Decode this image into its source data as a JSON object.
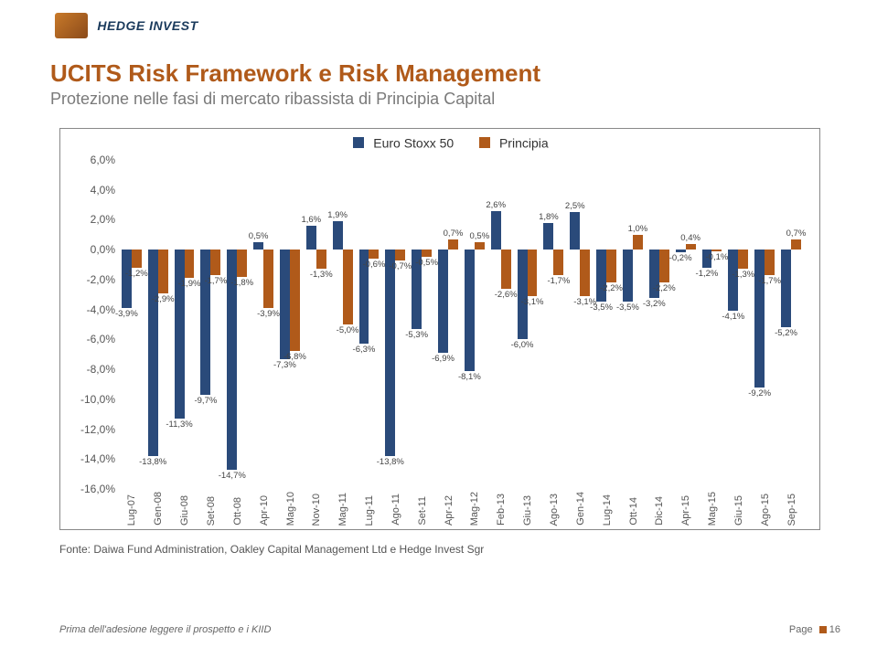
{
  "logo_text": "HEDGE INVEST",
  "title": "UCITS Risk Framework e Risk Management",
  "subtitle": "Protezione nelle fasi di mercato ribassista di Principia Capital",
  "source": "Fonte: Daiwa Fund Administration, Oakley Capital Management Ltd e Hedge Invest Sgr",
  "footer_left": "Prima dell'adesione leggere il prospetto e i KIID",
  "footer_right": "Page",
  "page_num": "16",
  "chart": {
    "type": "bar",
    "series": [
      {
        "name": "Euro Stoxx 50",
        "color": "#2a4a7a"
      },
      {
        "name": "Principia",
        "color": "#b05a1a"
      }
    ],
    "ylim": [
      -16,
      6
    ],
    "ytick_step": 2,
    "y_format_suffix": ",0%",
    "background_color": "#ffffff",
    "label_fontsize": 10,
    "categories": [
      "Lug-07",
      "Gen-08",
      "Giu-08",
      "Set-08",
      "Ott-08",
      "Apr-10",
      "Mag-10",
      "Nov-10",
      "Mag-11",
      "Lug-11",
      "Ago-11",
      "Set-11",
      "Apr-12",
      "Mag-12",
      "Feb-13",
      "Giu-13",
      "Ago-13",
      "Gen-14",
      "Lug-14",
      "Ott-14",
      "Dic-14",
      "Apr-15",
      "Mag-15",
      "Giu-15",
      "Ago-15",
      "Sep-15"
    ],
    "values_a": [
      -3.9,
      -13.8,
      -11.3,
      -9.7,
      -14.7,
      0.5,
      -7.3,
      1.6,
      1.9,
      -6.3,
      -13.8,
      -5.3,
      -6.9,
      -8.1,
      2.6,
      -6.0,
      1.8,
      2.5,
      -3.5,
      -3.5,
      -3.2,
      -0.2,
      -1.2,
      -4.1,
      -9.2,
      -5.2
    ],
    "values_b": [
      -1.2,
      -2.9,
      -1.9,
      -1.7,
      -1.8,
      -3.9,
      -6.8,
      -1.3,
      -5.0,
      -0.6,
      -0.7,
      -0.5,
      0.7,
      0.5,
      -2.6,
      -3.1,
      -1.7,
      -3.1,
      -2.2,
      1.0,
      -2.2,
      0.4,
      -0.1,
      -1.3,
      -1.7,
      0.7
    ],
    "labels_a": [
      "-3,9%",
      "-13,8%",
      "-11,3%",
      "-9,7%",
      "-14,7%",
      "0,5%",
      "-7,3%",
      "1,6%",
      "1,9%",
      "-6,3%",
      "-13,8%",
      "-5,3%",
      "-6,9%",
      "-8,1%",
      "2,6%",
      "-6,0%",
      "1,8%",
      "2,5%",
      "-3,5%",
      "-3,5%",
      "-3,2%",
      "-0,2%",
      "-1,2%",
      "-4,1%",
      "-9,2%",
      "-5,2%"
    ],
    "labels_b": [
      "-1,2%",
      "-2,9%",
      "-1,9%",
      "-1,7%",
      "-1,8%",
      "-3,9%",
      "-6,8%",
      "-1,3%",
      "-5,0%",
      "-0,6%",
      "-0,7%",
      "-0,5%",
      "0,7%",
      "0,5%",
      "-2,6%",
      "-3,1%",
      "-1,7%",
      "-3,1%",
      "-2,2%",
      "1,0%",
      "-2,2%",
      "0,4%",
      "-0,1%",
      "-1,3%",
      "-1,7%",
      "0,7%"
    ]
  }
}
